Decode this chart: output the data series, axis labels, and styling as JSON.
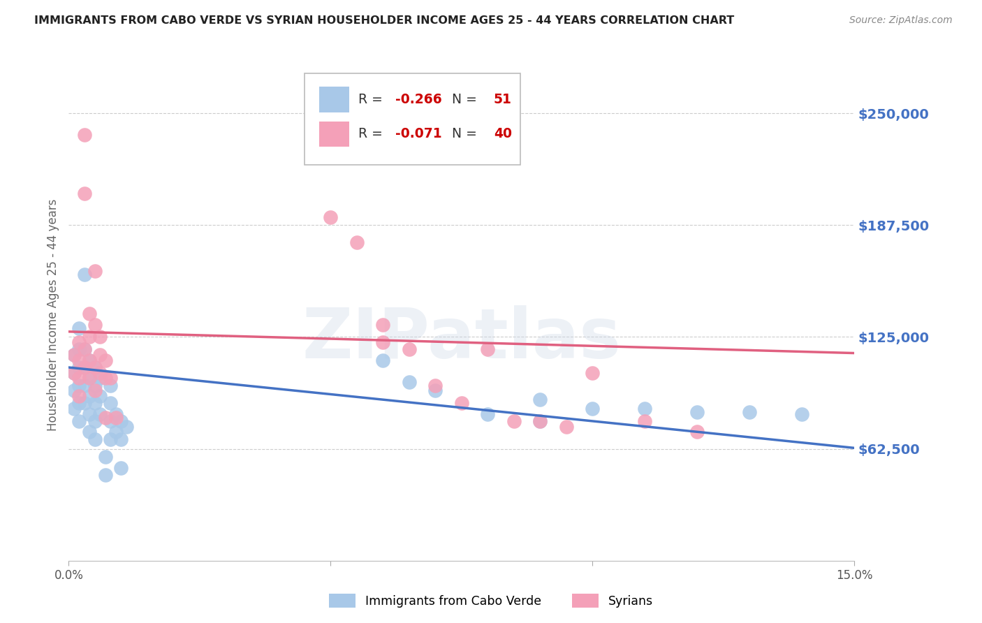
{
  "title": "IMMIGRANTS FROM CABO VERDE VS SYRIAN HOUSEHOLDER INCOME AGES 25 - 44 YEARS CORRELATION CHART",
  "source": "Source: ZipAtlas.com",
  "ylabel": "Householder Income Ages 25 - 44 years",
  "xlim": [
    0.0,
    0.15
  ],
  "ylim": [
    0,
    275000
  ],
  "yticks": [
    62500,
    125000,
    187500,
    250000
  ],
  "ytick_labels": [
    "$62,500",
    "$125,000",
    "$187,500",
    "$250,000"
  ],
  "xticks": [
    0.0,
    0.05,
    0.1,
    0.15
  ],
  "xtick_labels": [
    "0.0%",
    "",
    "",
    "15.0%"
  ],
  "background_color": "#ffffff",
  "grid_color": "#cccccc",
  "watermark": "ZIPatlas",
  "legend_cabo_verde_label": "Immigrants from Cabo Verde",
  "legend_syrians_label": "Syrians",
  "cabo_verde_color": "#a8c8e8",
  "syrians_color": "#f4a0b8",
  "cabo_verde_line_color": "#4472c4",
  "syrians_line_color": "#e06080",
  "corr_R_cabo": "-0.266",
  "corr_N_cabo": "51",
  "corr_R_syr": "-0.071",
  "corr_N_syr": "40",
  "title_color": "#222222",
  "axis_label_color": "#666666",
  "right_tick_color": "#4472c4",
  "source_color": "#888888",
  "cabo_verde_line": {
    "x0": 0.0,
    "y0": 108000,
    "x1": 0.15,
    "y1": 63000
  },
  "syrians_line": {
    "x0": 0.0,
    "y0": 128000,
    "x1": 0.15,
    "y1": 116000
  },
  "cabo_verde_scatter": [
    [
      0.001,
      115000
    ],
    [
      0.001,
      105000
    ],
    [
      0.001,
      95000
    ],
    [
      0.001,
      85000
    ],
    [
      0.002,
      130000
    ],
    [
      0.002,
      118000
    ],
    [
      0.002,
      108000
    ],
    [
      0.002,
      98000
    ],
    [
      0.002,
      88000
    ],
    [
      0.002,
      78000
    ],
    [
      0.003,
      160000
    ],
    [
      0.003,
      118000
    ],
    [
      0.003,
      108000
    ],
    [
      0.003,
      98000
    ],
    [
      0.003,
      88000
    ],
    [
      0.004,
      112000
    ],
    [
      0.004,
      102000
    ],
    [
      0.004,
      92000
    ],
    [
      0.004,
      82000
    ],
    [
      0.004,
      72000
    ],
    [
      0.005,
      108000
    ],
    [
      0.005,
      98000
    ],
    [
      0.005,
      88000
    ],
    [
      0.005,
      78000
    ],
    [
      0.005,
      68000
    ],
    [
      0.006,
      102000
    ],
    [
      0.006,
      92000
    ],
    [
      0.006,
      82000
    ],
    [
      0.007,
      58000
    ],
    [
      0.007,
      48000
    ],
    [
      0.008,
      98000
    ],
    [
      0.008,
      88000
    ],
    [
      0.008,
      78000
    ],
    [
      0.008,
      68000
    ],
    [
      0.009,
      82000
    ],
    [
      0.009,
      72000
    ],
    [
      0.01,
      78000
    ],
    [
      0.01,
      68000
    ],
    [
      0.01,
      52000
    ],
    [
      0.011,
      75000
    ],
    [
      0.06,
      112000
    ],
    [
      0.065,
      100000
    ],
    [
      0.07,
      95000
    ],
    [
      0.08,
      82000
    ],
    [
      0.09,
      90000
    ],
    [
      0.09,
      78000
    ],
    [
      0.1,
      85000
    ],
    [
      0.11,
      85000
    ],
    [
      0.12,
      83000
    ],
    [
      0.13,
      83000
    ],
    [
      0.14,
      82000
    ]
  ],
  "syrians_scatter": [
    [
      0.001,
      115000
    ],
    [
      0.001,
      105000
    ],
    [
      0.002,
      122000
    ],
    [
      0.002,
      112000
    ],
    [
      0.002,
      102000
    ],
    [
      0.002,
      92000
    ],
    [
      0.003,
      238000
    ],
    [
      0.003,
      205000
    ],
    [
      0.003,
      118000
    ],
    [
      0.003,
      108000
    ],
    [
      0.004,
      138000
    ],
    [
      0.004,
      125000
    ],
    [
      0.004,
      112000
    ],
    [
      0.004,
      102000
    ],
    [
      0.005,
      162000
    ],
    [
      0.005,
      132000
    ],
    [
      0.005,
      108000
    ],
    [
      0.005,
      95000
    ],
    [
      0.006,
      125000
    ],
    [
      0.006,
      115000
    ],
    [
      0.006,
      105000
    ],
    [
      0.007,
      112000
    ],
    [
      0.007,
      102000
    ],
    [
      0.007,
      80000
    ],
    [
      0.008,
      102000
    ],
    [
      0.009,
      80000
    ],
    [
      0.05,
      192000
    ],
    [
      0.055,
      178000
    ],
    [
      0.06,
      132000
    ],
    [
      0.06,
      122000
    ],
    [
      0.065,
      118000
    ],
    [
      0.07,
      98000
    ],
    [
      0.075,
      88000
    ],
    [
      0.08,
      118000
    ],
    [
      0.085,
      78000
    ],
    [
      0.09,
      78000
    ],
    [
      0.095,
      75000
    ],
    [
      0.1,
      105000
    ],
    [
      0.11,
      78000
    ],
    [
      0.12,
      72000
    ]
  ]
}
